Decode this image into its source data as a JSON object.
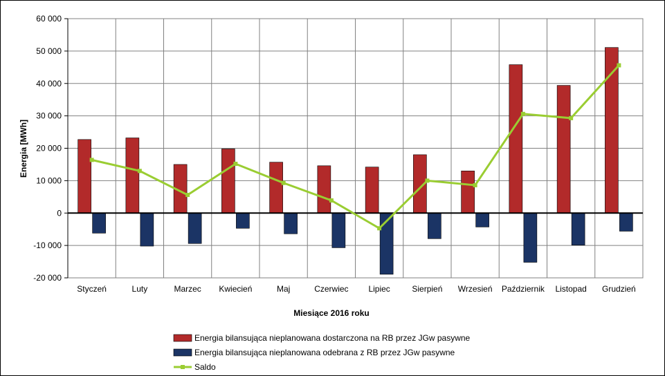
{
  "chart_data": {
    "type": "bar",
    "xlabel": "Miesiące 2016  roku",
    "ylabel": "Energia  [MWh]",
    "ylim": [
      -20000,
      60000
    ],
    "yticks": [
      60000,
      50000,
      40000,
      30000,
      20000,
      10000,
      0,
      -10000,
      -20000
    ],
    "ytick_labels": [
      "60 000",
      "50 000",
      "40 000",
      "30 000",
      "20 000",
      "10 000",
      "0",
      "-10 000",
      "-20 000"
    ],
    "grid": true,
    "legend_position": "bottom",
    "categories": [
      "Styczeń",
      "Luty",
      "Marzec",
      "Kwiecień",
      "Maj",
      "Czerwiec",
      "Lipiec",
      "Sierpień",
      "Wrzesień",
      "Październik",
      "Listopad",
      "Grudzień"
    ],
    "series": [
      {
        "name": "Energia bilansująca nieplanowana dostarczona na RB przez JGw pasywne",
        "type": "bar",
        "color": "#B22A2A",
        "values": [
          22700,
          23200,
          15000,
          19800,
          15700,
          14600,
          14200,
          18000,
          13000,
          45800,
          39400,
          51100
        ]
      },
      {
        "name": "Energia bilansująca nieplanowana odebrana z RB przez JGw pasywne",
        "type": "bar",
        "color": "#1B3465",
        "values": [
          -6200,
          -10200,
          -9400,
          -4700,
          -6400,
          -10700,
          -18900,
          -7900,
          -4300,
          -15200,
          -9900,
          -5600
        ]
      },
      {
        "name": "Saldo",
        "type": "line",
        "color": "#9ACD32",
        "values": [
          16400,
          13000,
          5600,
          15200,
          9300,
          3900,
          -4700,
          10000,
          8600,
          30600,
          29300,
          45600
        ]
      }
    ]
  }
}
